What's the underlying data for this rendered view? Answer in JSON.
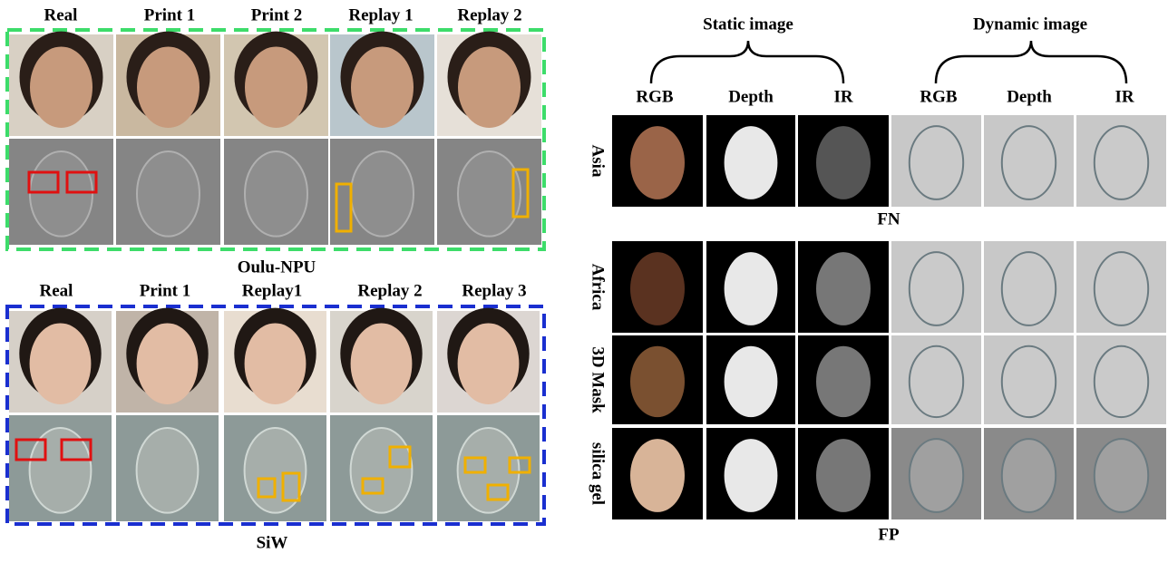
{
  "oulu": {
    "columns": [
      "Real",
      "Print 1",
      "Print 2",
      "Replay 1",
      "Replay 2"
    ],
    "caption": "Oulu-NPU"
  },
  "siw": {
    "columns": [
      "Real",
      "Print 1",
      "Replay1",
      "Replay 2",
      "Replay 3"
    ],
    "caption": "SiW"
  },
  "right": {
    "groups": [
      "Static image",
      "Dynamic image"
    ],
    "columns": [
      "RGB",
      "Depth",
      "IR",
      "RGB",
      "Depth",
      "IR"
    ],
    "rows": [
      "Asia",
      "Africa",
      "3D Mask",
      "silica gel"
    ],
    "captions": [
      "FN",
      "FP"
    ]
  }
}
